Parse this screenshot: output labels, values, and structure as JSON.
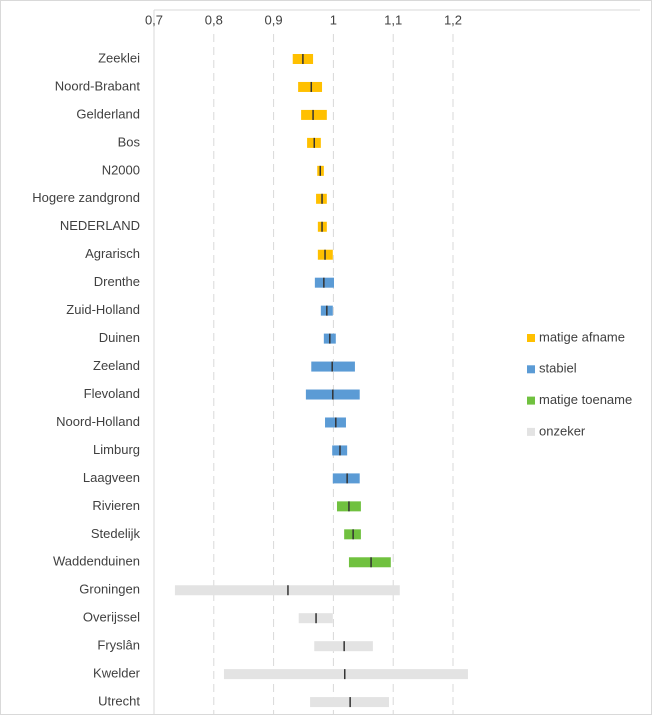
{
  "chart_data": {
    "type": "interval",
    "categories": [
      "Zeeklei",
      "Noord-Brabant",
      "Gelderland",
      "Bos",
      "N2000",
      "Hogere zandgrond",
      "NEDERLAND",
      "Agrarisch",
      "Drenthe",
      "Zuid-Holland",
      "Duinen",
      "Zeeland",
      "Flevoland",
      "Noord-Holland",
      "Limburg",
      "Laagveen",
      "Rivieren",
      "Stedelijk",
      "Waddenduinen",
      "Groningen",
      "Overijssel",
      "Fryslân",
      "Kwelder",
      "Utrecht"
    ],
    "series": [
      {
        "name": "matige afname",
        "color": "#ffc000",
        "low": [
          0.932,
          0.941,
          0.946,
          0.956,
          0.973,
          0.971,
          0.974,
          0.974,
          null,
          null,
          null,
          null,
          null,
          null,
          null,
          null,
          null,
          null,
          null,
          null,
          null,
          null,
          null,
          null
        ],
        "high": [
          0.966,
          0.981,
          0.989,
          0.979,
          0.984,
          0.989,
          0.989,
          0.999,
          null,
          null,
          null,
          null,
          null,
          null,
          null,
          null,
          null,
          null,
          null,
          null,
          null,
          null,
          null,
          null
        ],
        "estimate": [
          0.949,
          0.963,
          0.966,
          0.968,
          0.978,
          0.981,
          0.981,
          0.986,
          null,
          null,
          null,
          null,
          null,
          null,
          null,
          null,
          null,
          null,
          null,
          null,
          null,
          null,
          null,
          null
        ]
      },
      {
        "name": "stabiel",
        "color": "#5b9bd5",
        "low": [
          null,
          null,
          null,
          null,
          null,
          null,
          null,
          null,
          0.969,
          0.979,
          0.984,
          0.963,
          0.954,
          0.986,
          0.998,
          0.999,
          null,
          null,
          null,
          null,
          null,
          null,
          null,
          null
        ],
        "high": [
          null,
          null,
          null,
          null,
          null,
          null,
          null,
          null,
          1.001,
          0.999,
          1.004,
          1.036,
          1.044,
          1.021,
          1.023,
          1.044,
          null,
          null,
          null,
          null,
          null,
          null,
          null,
          null
        ],
        "estimate": [
          null,
          null,
          null,
          null,
          null,
          null,
          null,
          null,
          0.984,
          0.989,
          0.994,
          0.998,
          0.999,
          1.004,
          1.011,
          1.023,
          null,
          null,
          null,
          null,
          null,
          null,
          null,
          null
        ]
      },
      {
        "name": "matige toename",
        "color": "#70c13f",
        "low": [
          null,
          null,
          null,
          null,
          null,
          null,
          null,
          null,
          null,
          null,
          null,
          null,
          null,
          null,
          null,
          null,
          1.006,
          1.018,
          1.026,
          null,
          null,
          null,
          null,
          null
        ],
        "high": [
          null,
          null,
          null,
          null,
          null,
          null,
          null,
          null,
          null,
          null,
          null,
          null,
          null,
          null,
          null,
          null,
          1.046,
          1.046,
          1.096,
          null,
          null,
          null,
          null,
          null
        ],
        "estimate": [
          null,
          null,
          null,
          null,
          null,
          null,
          null,
          null,
          null,
          null,
          null,
          null,
          null,
          null,
          null,
          null,
          1.026,
          1.033,
          1.063,
          null,
          null,
          null,
          null,
          null
        ]
      },
      {
        "name": "onzeker",
        "color": "#e3e3e3",
        "low": [
          null,
          null,
          null,
          null,
          null,
          null,
          null,
          null,
          null,
          null,
          null,
          null,
          null,
          null,
          null,
          null,
          null,
          null,
          null,
          0.735,
          0.942,
          0.968,
          0.817,
          0.961
        ],
        "high": [
          null,
          null,
          null,
          null,
          null,
          null,
          null,
          null,
          null,
          null,
          null,
          null,
          null,
          null,
          null,
          null,
          null,
          null,
          null,
          1.111,
          0.999,
          1.066,
          1.225,
          1.093
        ],
        "estimate": [
          null,
          null,
          null,
          null,
          null,
          null,
          null,
          null,
          null,
          null,
          null,
          null,
          null,
          null,
          null,
          null,
          null,
          null,
          null,
          0.924,
          0.971,
          1.018,
          1.019,
          1.028
        ]
      }
    ],
    "xlim": [
      0.7,
      1.25
    ],
    "xticks": [
      {
        "value": 0.7,
        "label": "0,7"
      },
      {
        "value": 0.8,
        "label": "0,8"
      },
      {
        "value": 0.9,
        "label": "0,9"
      },
      1,
      {
        "value": 1.1,
        "label": "1,1"
      },
      {
        "value": 1.2,
        "label": "1,2"
      }
    ],
    "grid": true,
    "estimate_color": "#333333",
    "legend": "right"
  }
}
